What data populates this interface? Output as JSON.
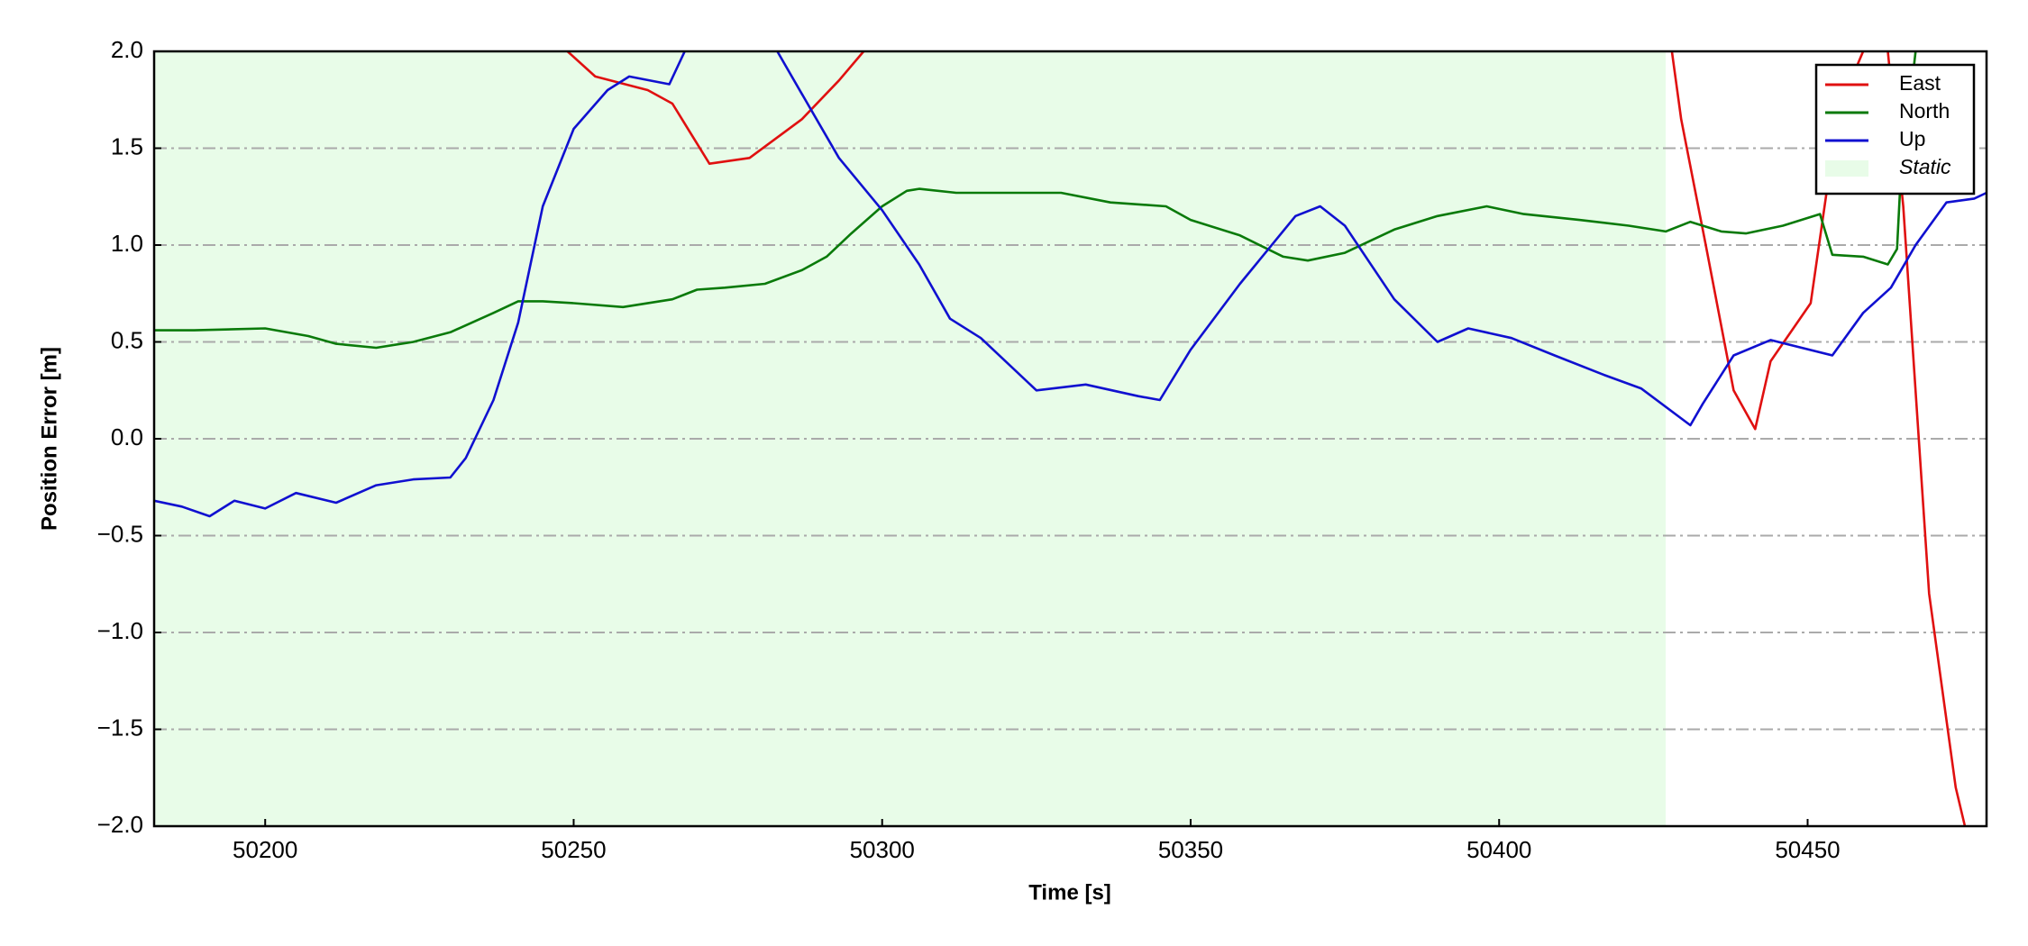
{
  "chart_data": {
    "type": "line",
    "xlabel": "Time [s]",
    "ylabel": "Position Error [m]",
    "xlim": [
      50182,
      50479
    ],
    "ylim": [
      -2,
      2
    ],
    "xticks": [
      50200,
      50250,
      50300,
      50350,
      50400,
      50450
    ],
    "yticks": [
      {
        "value": -2,
        "label": "−2.0"
      },
      {
        "value": -1.5,
        "label": "−1.5"
      },
      {
        "value": -1,
        "label": "−1.0"
      },
      {
        "value": -0.5,
        "label": "−0.5"
      },
      {
        "value": 0,
        "label": "0.0"
      },
      {
        "value": 0.5,
        "label": "0.5"
      },
      {
        "value": 1,
        "label": "1.0"
      },
      {
        "value": 1.5,
        "label": "1.5"
      },
      {
        "value": 2,
        "label": "2.0"
      }
    ],
    "grid": true,
    "legend": "upper right",
    "static_region": {
      "label": "Static",
      "xlim": [
        50182,
        50427
      ],
      "color": "#e8fce8"
    },
    "series": [
      {
        "name": "East",
        "color": "#e01010",
        "x": [
          50249,
          50253.5,
          50262,
          50266,
          50272,
          50278.5,
          50287,
          50293,
          50297,
          50330,
          50428,
          50429.5,
          50433.5,
          50438,
          50441.5,
          50444,
          50450.5,
          50455,
          50459,
          50461,
          50463,
          50465.5,
          50469.7,
          50474,
          50475.5
        ],
        "values": [
          2.0,
          1.87,
          1.8,
          1.73,
          1.42,
          1.45,
          1.65,
          1.85,
          2.0,
          null,
          2.0,
          1.65,
          1.0,
          0.25,
          0.05,
          0.4,
          0.7,
          1.7,
          2.0,
          null,
          2.0,
          1.2,
          -0.8,
          -1.8,
          -2.0
        ]
      },
      {
        "name": "North",
        "color": "#0a7a0a",
        "x": [
          50182,
          50188.5,
          50200,
          50207,
          50211.5,
          50218,
          50224,
          50230,
          50237,
          50241,
          50245,
          50250,
          50258,
          50266,
          50270,
          50274.5,
          50281,
          50287,
          50291,
          50295,
          50300,
          50304,
          50306,
          50312,
          50325,
          50329,
          50337,
          50346,
          50350,
          50358,
          50365,
          50369,
          50375,
          50383,
          50390,
          50398,
          50404,
          50413,
          50421,
          50427,
          50431,
          50436,
          50440,
          50446,
          50452,
          50454,
          50459,
          50463,
          50464.5,
          50465,
          50467.5
        ],
        "values": [
          0.56,
          0.56,
          0.57,
          0.53,
          0.49,
          0.47,
          0.5,
          0.55,
          0.65,
          0.71,
          0.71,
          0.7,
          0.68,
          0.72,
          0.77,
          0.78,
          0.8,
          0.87,
          0.94,
          1.06,
          1.2,
          1.28,
          1.29,
          1.27,
          1.27,
          1.27,
          1.22,
          1.2,
          1.13,
          1.05,
          0.94,
          0.92,
          0.96,
          1.08,
          1.15,
          1.2,
          1.16,
          1.13,
          1.1,
          1.07,
          1.12,
          1.07,
          1.06,
          1.1,
          1.16,
          0.95,
          0.94,
          0.9,
          0.98,
          1.3,
          2.0
        ]
      },
      {
        "name": "Up",
        "color": "#1010d0",
        "x": [
          50182,
          50186.5,
          50191,
          50195,
          50200,
          50205,
          50211.5,
          50218,
          50224,
          50230,
          50232.5,
          50237,
          50241,
          50245,
          50250,
          50255.5,
          50259,
          50265.5,
          50268,
          50275,
          50283,
          50287,
          50293,
          50300,
          50306,
          50311,
          50316,
          50325,
          50333,
          50341.5,
          50345,
          50350,
          50358,
          50367,
          50371,
          50375,
          50383,
          50390,
          50395,
          50402,
          50409,
          50417,
          50423,
          50431,
          50433,
          50438,
          50444,
          50454,
          50459,
          50463.5,
          50467.5,
          50472.5,
          50477,
          50479
        ],
        "values": [
          -0.32,
          -0.35,
          -0.4,
          -0.32,
          -0.36,
          -0.28,
          -0.33,
          -0.24,
          -0.21,
          -0.2,
          -0.1,
          0.2,
          0.6,
          1.2,
          1.6,
          1.8,
          1.87,
          1.83,
          2.0,
          null,
          2.0,
          1.78,
          1.45,
          1.18,
          0.9,
          0.62,
          0.52,
          0.25,
          0.28,
          0.22,
          0.2,
          0.46,
          0.8,
          1.15,
          1.2,
          1.1,
          0.72,
          0.5,
          0.57,
          0.52,
          0.43,
          0.33,
          0.26,
          0.07,
          0.18,
          0.43,
          0.51,
          0.43,
          0.65,
          0.78,
          1.0,
          1.22,
          1.24,
          1.27
        ]
      }
    ]
  }
}
